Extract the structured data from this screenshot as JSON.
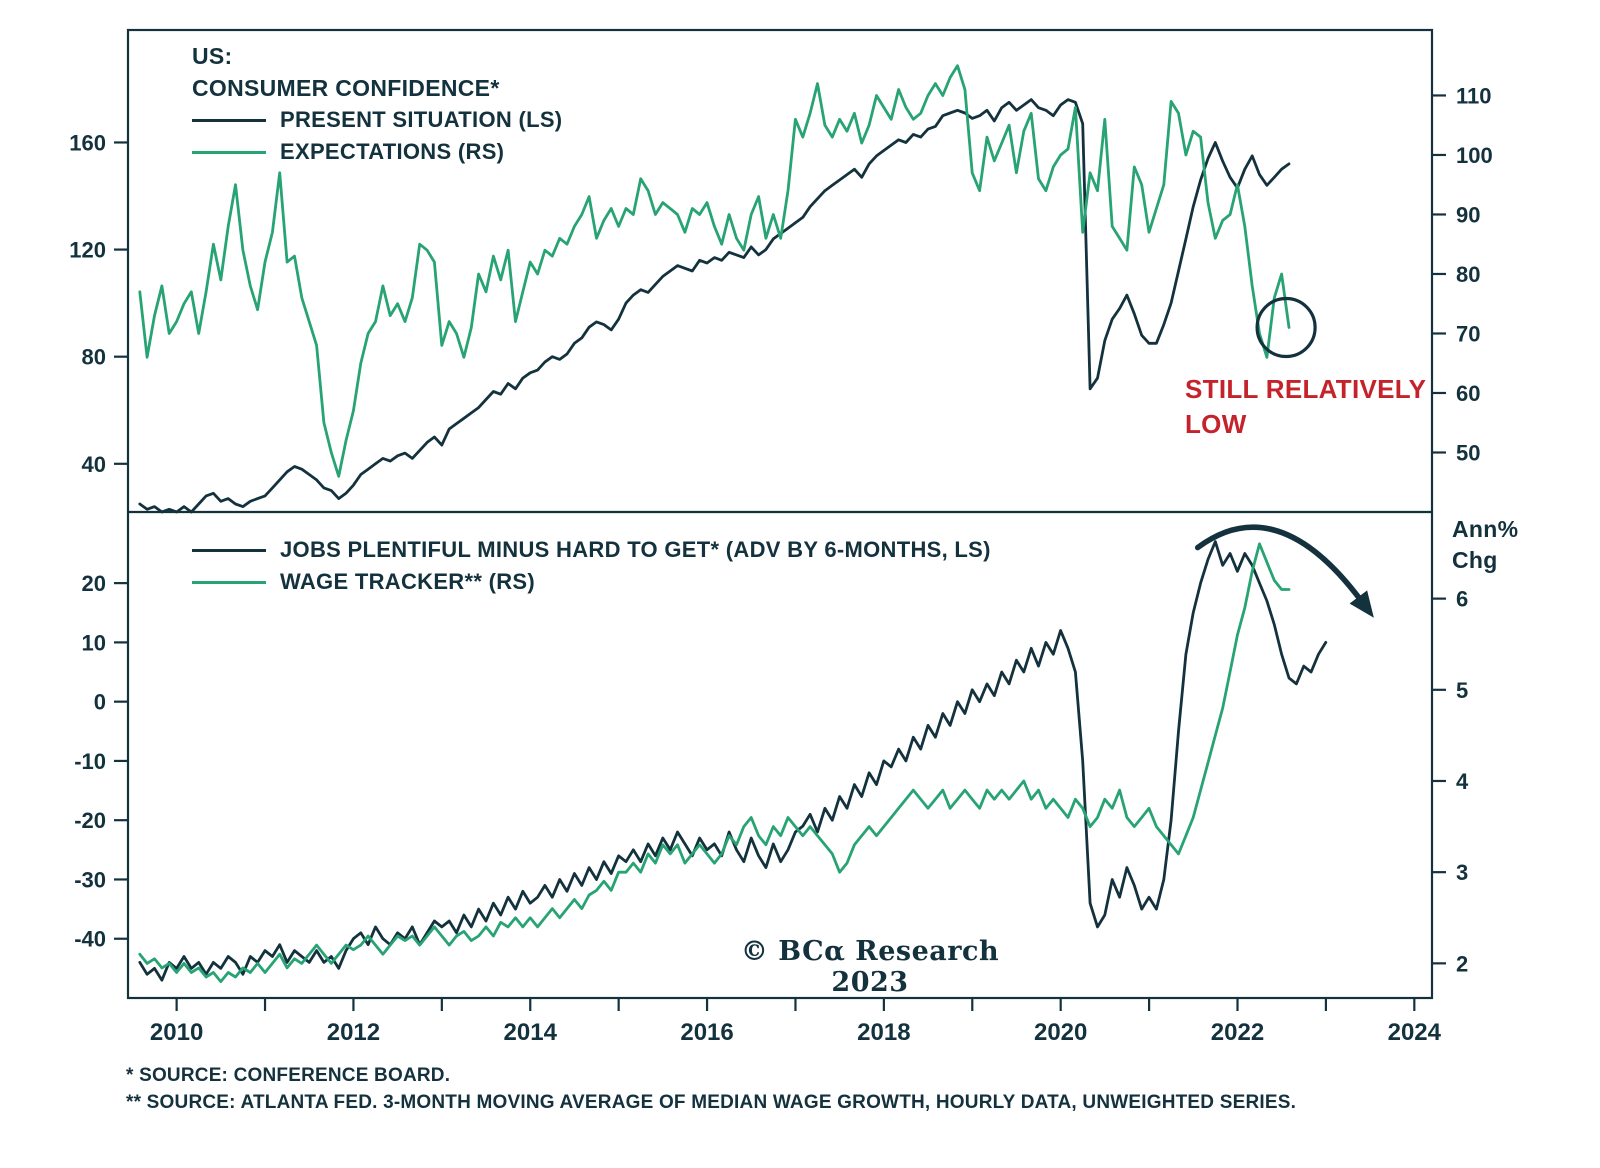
{
  "colors": {
    "navy": "#14323E",
    "green": "#27A374",
    "red": "#C5232B",
    "background": "#FFFFFF"
  },
  "labels": {
    "still_low_1": "STILL RELATIVELY",
    "still_low_2": "LOW",
    "ann_chg_1": "Ann%",
    "ann_chg_2": "Chg",
    "watermark": "© BCα Research 2023"
  },
  "footnotes": {
    "line1": "*  SOURCE: CONFERENCE BOARD.",
    "line2": "** SOURCE: ATLANTA FED. 3-MONTH MOVING AVERAGE OF MEDIAN WAGE GROWTH, HOURLY DATA, UNWEIGHTED SERIES."
  },
  "chart_data": [
    {
      "type": "line",
      "panel": "top",
      "title_lines": [
        "US:",
        "CONSUMER CONFIDENCE*"
      ],
      "x_range": [
        2009.45,
        2024.2
      ],
      "left_axis": {
        "range": [
          22,
          202
        ],
        "ticks": [
          40,
          80,
          120,
          160
        ]
      },
      "right_axis": {
        "range": [
          40,
          121
        ],
        "ticks": [
          50,
          60,
          70,
          80,
          90,
          100,
          110
        ]
      },
      "series": [
        {
          "id": "present-situation-line",
          "name": "PRESENT SITUATION (LS)",
          "axis": "left",
          "color": "navy",
          "x_start": 2009.583,
          "x_step": 0.08333,
          "values": [
            25,
            23,
            24,
            22,
            23,
            22,
            24,
            22,
            25,
            28,
            29,
            26,
            27,
            25,
            24,
            26,
            27,
            28,
            31,
            34,
            37,
            39,
            38,
            36,
            34,
            31,
            30,
            27,
            29,
            32,
            36,
            38,
            40,
            42,
            41,
            43,
            44,
            42,
            45,
            48,
            50,
            47,
            53,
            55,
            57,
            59,
            61,
            64,
            67,
            66,
            70,
            68,
            72,
            74,
            75,
            78,
            80,
            79,
            81,
            85,
            87,
            91,
            93,
            92,
            90,
            94,
            100,
            103,
            105,
            104,
            107,
            110,
            112,
            114,
            113,
            112,
            116,
            115,
            117,
            116,
            119,
            118,
            117,
            121,
            118,
            120,
            124,
            126,
            128,
            130,
            132,
            136,
            139,
            142,
            144,
            146,
            148,
            150,
            147,
            152,
            155,
            157,
            159,
            161,
            160,
            163,
            162,
            165,
            166,
            170,
            171,
            172,
            171,
            169,
            170,
            172,
            168,
            173,
            175,
            172,
            174,
            176,
            173,
            172,
            170,
            174,
            176,
            175,
            167,
            68,
            72,
            86,
            94,
            98,
            103,
            96,
            88,
            85,
            85,
            92,
            100,
            112,
            124,
            136,
            146,
            154,
            160,
            153,
            147,
            143,
            150,
            155,
            148,
            144,
            147,
            150,
            152
          ]
        },
        {
          "id": "expectations-line",
          "name": "EXPECTATIONS (RS)",
          "axis": "right",
          "color": "green",
          "x_start": 2009.583,
          "x_step": 0.08333,
          "values": [
            77,
            66,
            73,
            78,
            70,
            72,
            75,
            77,
            70,
            77,
            85,
            79,
            88,
            95,
            84,
            78,
            74,
            82,
            87,
            97,
            82,
            83,
            76,
            72,
            68,
            55,
            50,
            46,
            52,
            57,
            65,
            70,
            72,
            78,
            73,
            75,
            72,
            76,
            85,
            84,
            82,
            68,
            72,
            70,
            66,
            71,
            80,
            77,
            83,
            79,
            84,
            72,
            77,
            82,
            80,
            84,
            83,
            86,
            85,
            88,
            90,
            93,
            86,
            89,
            91,
            88,
            91,
            90,
            96,
            94,
            90,
            92,
            91,
            90,
            87,
            91,
            90,
            92,
            88,
            85,
            90,
            86,
            84,
            90,
            93,
            86,
            90,
            86,
            94,
            106,
            103,
            107,
            112,
            105,
            103,
            106,
            104,
            107,
            102,
            105,
            110,
            108,
            106,
            111,
            108,
            106,
            107,
            110,
            112,
            110,
            113,
            115,
            111,
            97,
            94,
            103,
            99,
            102,
            105,
            97,
            104,
            107,
            96,
            94,
            98,
            100,
            101,
            108,
            87,
            97,
            94,
            106,
            88,
            86,
            84,
            98,
            95,
            87,
            91,
            95,
            109,
            107,
            100,
            104,
            103,
            92,
            86,
            89,
            90,
            95,
            88,
            78,
            70,
            66,
            76,
            80,
            71
          ]
        }
      ],
      "annotations": {
        "circle": {
          "x": 2022.55,
          "value": 71,
          "axis": "right",
          "r": 29
        },
        "text": "STILL RELATIVELY LOW"
      }
    },
    {
      "type": "line",
      "panel": "bottom",
      "x_range": [
        2009.45,
        2024.2
      ],
      "x_ticks": [
        2010,
        2012,
        2014,
        2016,
        2018,
        2020,
        2022,
        2024
      ],
      "left_axis": {
        "range": [
          -50,
          32
        ],
        "ticks": [
          -40,
          -30,
          -20,
          -10,
          0,
          10,
          20
        ]
      },
      "right_axis": {
        "range": [
          1.62,
          6.95
        ],
        "ticks": [
          2,
          3,
          4,
          5,
          6
        ],
        "unit": "Ann% Chg"
      },
      "series": [
        {
          "id": "jobs-differential-line",
          "name": "JOBS PLENTIFUL MINUS HARD TO GET* (ADV BY 6-MONTHS, LS)",
          "axis": "left",
          "color": "navy",
          "x_start": 2009.583,
          "x_step": 0.08333,
          "values": [
            -44,
            -46,
            -45,
            -47,
            -44,
            -45,
            -43,
            -45,
            -44,
            -46,
            -44,
            -45,
            -43,
            -44,
            -46,
            -43,
            -44,
            -42,
            -43,
            -41,
            -44,
            -42,
            -43,
            -44,
            -42,
            -44,
            -43,
            -45,
            -42,
            -40,
            -39,
            -41,
            -38,
            -40,
            -41,
            -39,
            -40,
            -38,
            -41,
            -39,
            -37,
            -38,
            -37,
            -39,
            -36,
            -38,
            -35,
            -37,
            -34,
            -36,
            -33,
            -35,
            -32,
            -34,
            -33,
            -31,
            -33,
            -30,
            -32,
            -29,
            -31,
            -28,
            -30,
            -27,
            -29,
            -26,
            -27,
            -25,
            -27,
            -24,
            -26,
            -23,
            -25,
            -22,
            -24,
            -26,
            -23,
            -25,
            -24,
            -26,
            -22,
            -25,
            -27,
            -23,
            -26,
            -28,
            -24,
            -27,
            -25,
            -22,
            -21,
            -19,
            -22,
            -18,
            -20,
            -16,
            -18,
            -14,
            -16,
            -12,
            -14,
            -10,
            -11,
            -8,
            -10,
            -6,
            -8,
            -4,
            -6,
            -2,
            -4,
            0,
            -2,
            2,
            0,
            3,
            1,
            5,
            3,
            7,
            5,
            9,
            6,
            10,
            8,
            12,
            9,
            5,
            -10,
            -34,
            -38,
            -36,
            -30,
            -33,
            -28,
            -31,
            -35,
            -33,
            -35,
            -30,
            -20,
            -5,
            8,
            15,
            20,
            24,
            27,
            23,
            25,
            22,
            25,
            23,
            20,
            17,
            13,
            8,
            4,
            3,
            6,
            5,
            8,
            10
          ]
        },
        {
          "id": "wage-tracker-line",
          "name": "WAGE TRACKER** (RS)",
          "axis": "right",
          "color": "green",
          "x_start": 2009.583,
          "x_step": 0.08333,
          "values": [
            2.1,
            2.0,
            2.05,
            1.95,
            2.0,
            1.9,
            2.0,
            1.9,
            1.95,
            1.85,
            1.9,
            1.8,
            1.9,
            1.85,
            1.95,
            1.9,
            2.0,
            1.9,
            2.0,
            2.1,
            1.95,
            2.05,
            2.0,
            2.1,
            2.2,
            2.1,
            2.0,
            2.1,
            2.2,
            2.15,
            2.2,
            2.3,
            2.2,
            2.1,
            2.2,
            2.3,
            2.25,
            2.3,
            2.2,
            2.3,
            2.4,
            2.3,
            2.2,
            2.3,
            2.35,
            2.25,
            2.3,
            2.4,
            2.3,
            2.45,
            2.4,
            2.5,
            2.4,
            2.5,
            2.4,
            2.5,
            2.6,
            2.5,
            2.6,
            2.7,
            2.6,
            2.75,
            2.8,
            2.9,
            2.8,
            3.0,
            3.0,
            3.1,
            3.0,
            3.2,
            3.1,
            3.3,
            3.2,
            3.3,
            3.1,
            3.2,
            3.3,
            3.2,
            3.1,
            3.2,
            3.4,
            3.3,
            3.5,
            3.6,
            3.4,
            3.3,
            3.5,
            3.4,
            3.6,
            3.5,
            3.4,
            3.5,
            3.4,
            3.3,
            3.2,
            3.0,
            3.1,
            3.3,
            3.4,
            3.5,
            3.4,
            3.5,
            3.6,
            3.7,
            3.8,
            3.9,
            3.8,
            3.7,
            3.8,
            3.9,
            3.7,
            3.8,
            3.9,
            3.8,
            3.7,
            3.9,
            3.8,
            3.9,
            3.8,
            3.9,
            4.0,
            3.8,
            3.9,
            3.7,
            3.8,
            3.7,
            3.6,
            3.8,
            3.7,
            3.5,
            3.6,
            3.8,
            3.7,
            3.9,
            3.6,
            3.5,
            3.6,
            3.7,
            3.5,
            3.4,
            3.3,
            3.2,
            3.4,
            3.6,
            3.9,
            4.2,
            4.5,
            4.8,
            5.2,
            5.6,
            5.9,
            6.3,
            6.6,
            6.4,
            6.2,
            6.1,
            6.1
          ]
        }
      ],
      "annotations": {
        "arrow": {
          "from": [
            2021.55,
            26
          ],
          "ctrl": [
            2022.45,
            36
          ],
          "to": [
            2023.4,
            17
          ]
        }
      }
    }
  ]
}
